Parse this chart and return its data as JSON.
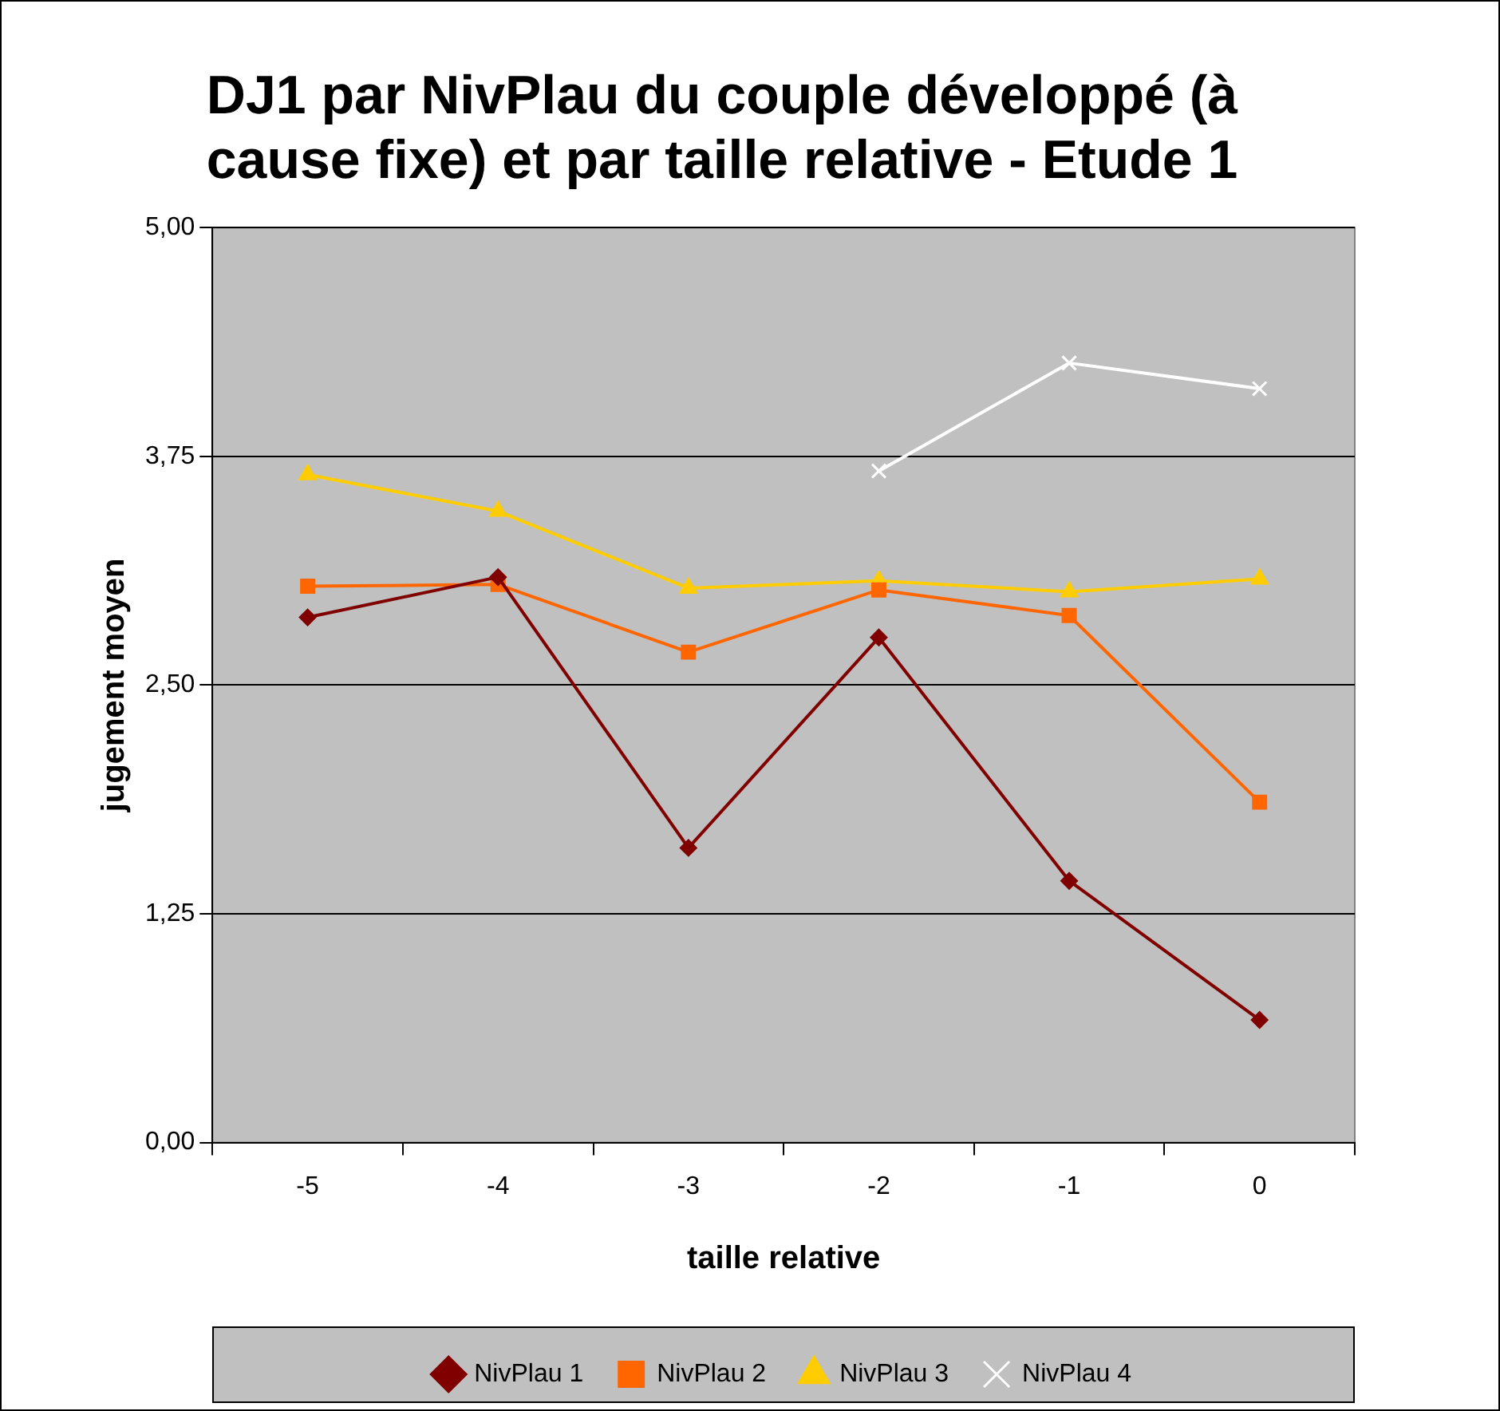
{
  "chart_data": {
    "type": "line",
    "title": "DJ1 par NivPlau du couple développé (à cause fixe) et par taille relative - Etude 1",
    "xlabel": "taille relative",
    "ylabel": "jugement moyen",
    "categories": [
      "-5",
      "-4",
      "-3",
      "-2",
      "-1",
      "0"
    ],
    "series": [
      {
        "name": "NivPlau 1",
        "color": "#800000",
        "marker": "diamond",
        "values": [
          2.87,
          3.09,
          1.61,
          2.76,
          1.43,
          0.67
        ]
      },
      {
        "name": "NivPlau 2",
        "color": "#ff6600",
        "marker": "square",
        "values": [
          3.04,
          3.05,
          2.68,
          3.02,
          2.88,
          1.86
        ]
      },
      {
        "name": "NivPlau 3",
        "color": "#ffcc00",
        "marker": "triangle",
        "values": [
          3.65,
          3.45,
          3.03,
          3.07,
          3.01,
          3.08
        ]
      },
      {
        "name": "NivPlau 4",
        "color": "#ffffff",
        "marker": "cross",
        "values": [
          null,
          null,
          null,
          3.67,
          4.26,
          4.12
        ]
      }
    ],
    "ylim": [
      0,
      5
    ],
    "yticks": [
      {
        "value": 0,
        "label": "0,00"
      },
      {
        "value": 1.25,
        "label": "1,25"
      },
      {
        "value": 2.5,
        "label": "2,50"
      },
      {
        "value": 3.75,
        "label": "3,75"
      },
      {
        "value": 5,
        "label": "5,00"
      }
    ],
    "grid": "y",
    "legend": "bottom",
    "line_style": "solid"
  }
}
